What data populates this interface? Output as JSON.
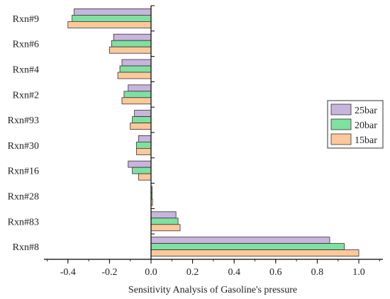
{
  "chart_data": {
    "type": "bar",
    "orientation": "horizontal",
    "title": "",
    "xlabel": "Sensitivity Analysis of Gasoline's pressure",
    "ylabel": "",
    "xlim": [
      -0.52,
      1.12
    ],
    "xticks": [
      -0.4,
      -0.2,
      0.0,
      0.2,
      0.4,
      0.6,
      0.8,
      1.0
    ],
    "xtick_labels": [
      "-0.4",
      "-0.2",
      "0.0",
      "0.2",
      "0.4",
      "0.6",
      "0.8",
      "1.0"
    ],
    "grid": false,
    "legend_position": "right",
    "categories": [
      "Rxn#9",
      "Rxn#6",
      "Rxn#4",
      "Rxn#2",
      "Rxn#93",
      "Rxn#30",
      "Rxn#16",
      "Rxn#28",
      "Rxn#83",
      "Rxn#8"
    ],
    "series": [
      {
        "name": "25bar",
        "color": "#c8b4dc",
        "values": [
          -0.37,
          -0.18,
          -0.14,
          -0.11,
          -0.08,
          -0.06,
          -0.11,
          0.005,
          0.12,
          0.86
        ]
      },
      {
        "name": "20bar",
        "color": "#7fe0a0",
        "values": [
          -0.38,
          -0.19,
          -0.15,
          -0.13,
          -0.09,
          -0.07,
          -0.09,
          0.005,
          0.13,
          0.93
        ]
      },
      {
        "name": "15bar",
        "color": "#ffc89a",
        "values": [
          -0.4,
          -0.2,
          -0.16,
          -0.14,
          -0.1,
          -0.07,
          -0.06,
          0.007,
          0.14,
          1.0
        ]
      }
    ]
  }
}
